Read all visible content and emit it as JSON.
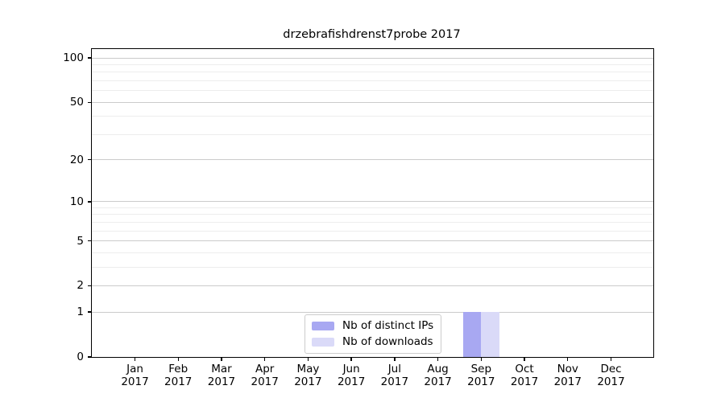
{
  "chart_data": {
    "type": "bar",
    "title": "drzebrafishdrenst7probe 2017",
    "categories": [
      "Jan 2017",
      "Feb 2017",
      "Mar 2017",
      "Apr 2017",
      "May 2017",
      "Jun 2017",
      "Jul 2017",
      "Aug 2017",
      "Sep 2017",
      "Oct 2017",
      "Nov 2017",
      "Dec 2017"
    ],
    "series": [
      {
        "name": "Nb of distinct IPs",
        "color": "#a8a8f2",
        "values": [
          0,
          0,
          0,
          0,
          0,
          0,
          0,
          0,
          1,
          0,
          0,
          0
        ]
      },
      {
        "name": "Nb of downloads",
        "color": "#dadaf8",
        "values": [
          0,
          0,
          0,
          0,
          0,
          0,
          0,
          0,
          1,
          0,
          0,
          0
        ]
      }
    ],
    "yscale": "log1p",
    "ylim": [
      0,
      115
    ],
    "y_major_ticks": [
      0,
      1,
      2,
      5,
      10,
      20,
      50,
      100
    ],
    "y_minor_ticks": [
      3,
      4,
      6,
      7,
      8,
      9,
      30,
      40,
      60,
      70,
      80,
      90
    ],
    "grid": true,
    "legend_position": "bottom-center",
    "legend_labels": [
      "Nb of distinct IPs",
      "Nb of downloads"
    ]
  },
  "colors": {
    "axis": "#000000",
    "grid_major": "#cbcbcb",
    "grid_minor": "#ededed",
    "legend_border": "#cccccc",
    "background": "#ffffff"
  }
}
